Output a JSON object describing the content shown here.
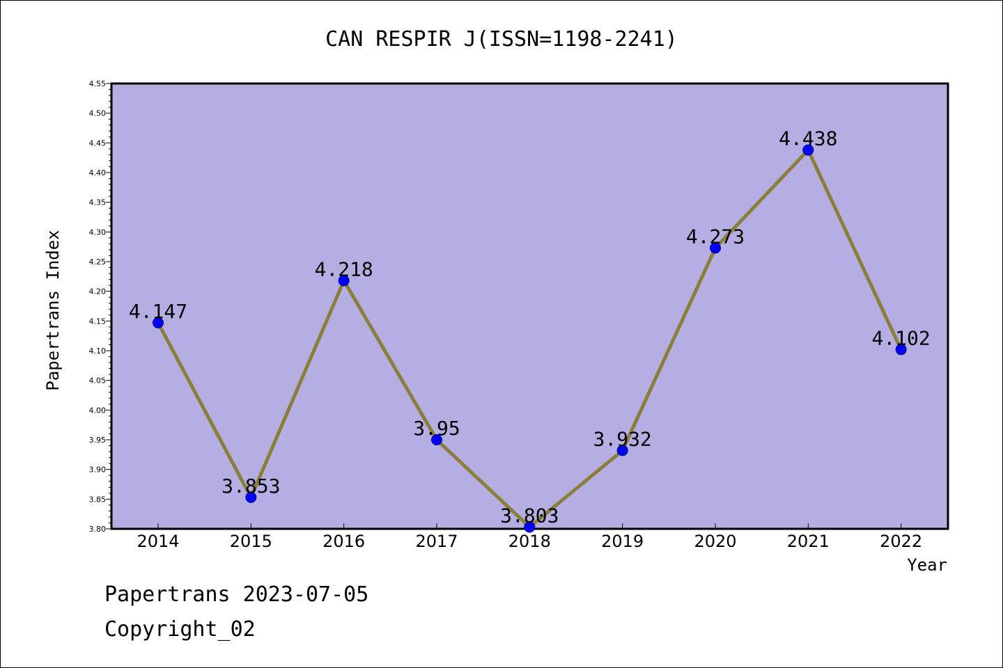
{
  "chart_data": {
    "type": "line",
    "title": "CAN RESPIR J(ISSN=1198-2241)",
    "xlabel": "Year",
    "ylabel": "Papertrans Index",
    "categories": [
      "2014",
      "2015",
      "2016",
      "2017",
      "2018",
      "2019",
      "2020",
      "2021",
      "2022"
    ],
    "series": [
      {
        "values": [
          4.147,
          3.853,
          4.218,
          3.95,
          3.803,
          3.932,
          4.273,
          4.438,
          4.102
        ],
        "data_labels": [
          "4.147",
          "3.853",
          "4.218",
          "3.95",
          "3.803",
          "3.932",
          "4.273",
          "4.438",
          "4.102"
        ]
      }
    ],
    "ylim": [
      3.8,
      4.55
    ],
    "yticks": [
      "3.80",
      "3.85",
      "3.90",
      "3.95",
      "4.00",
      "4.05",
      "4.10",
      "4.15",
      "4.20",
      "4.25",
      "4.30",
      "4.35",
      "4.40",
      "4.45",
      "4.50",
      "4.55"
    ],
    "grid": false,
    "colors": {
      "plot_background": "#b5aee2",
      "line": "#8b7d3a",
      "marker": "#0000ff",
      "marker_edge": "#00008b"
    }
  },
  "footer": {
    "line1": "Papertrans 2023-07-05",
    "line2": "Copyright_02"
  }
}
